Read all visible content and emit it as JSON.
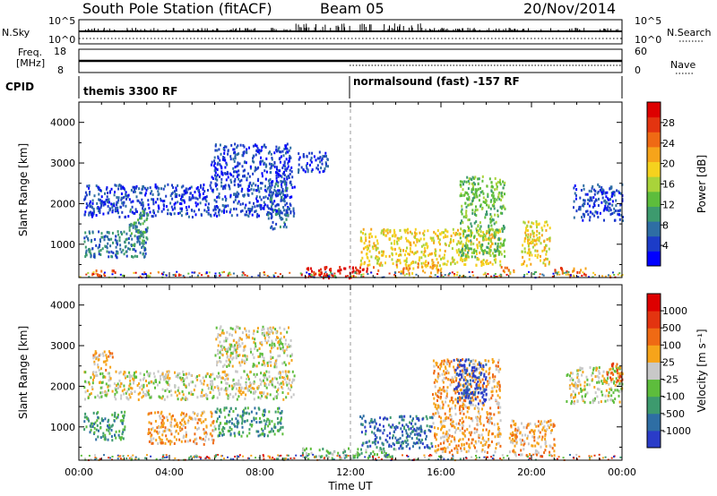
{
  "header": {
    "station": "South Pole Station (fitACF)",
    "beam": "Beam 05",
    "date": "20/Nov/2014"
  },
  "strips": {
    "nsky_label": "N.Sky",
    "nsky_ticks": [
      "10^5",
      "10^0"
    ],
    "nsearch_label": "N.Search",
    "nsearch_ticks": [
      "10^5",
      "10^0"
    ],
    "freq_label_1": "Freq.",
    "freq_label_2": "[MHz]",
    "freq_ticks": [
      "18",
      "8"
    ],
    "nave_label": "Nave",
    "nave_ticks": [
      "60",
      "0"
    ],
    "cpid_label": "CPID",
    "cpid_entries": [
      "themis 3300 RF",
      "normalsound (fast) -157 RF"
    ]
  },
  "chart_data": [
    {
      "type": "heatmap",
      "name": "power",
      "ylabel": "Slant Range [km]",
      "yticks": [
        1000,
        2000,
        3000,
        4000
      ],
      "ylim": [
        180,
        4500
      ],
      "xlabel": "Time UT",
      "xticks": [
        "00:00",
        "04:00",
        "08:00",
        "12:00",
        "16:00",
        "20:00",
        "00:00"
      ],
      "xlim_hours": [
        0,
        24
      ],
      "colorbar": {
        "label": "Power [dB]",
        "ticks": [
          "28",
          "24",
          "20",
          "16",
          "12",
          "8",
          "4"
        ],
        "colors": [
          "#0000ff",
          "#1c3cc8",
          "#2e6ea4",
          "#3d9a6e",
          "#5dbd3c",
          "#a9d33a",
          "#f5d21e",
          "#f6a41a",
          "#ef6a14",
          "#e33410",
          "#dd0000"
        ]
      },
      "regions": [
        {
          "t0": 0.2,
          "t1": 9.5,
          "r0": 1700,
          "r1": 2500,
          "level": 1
        },
        {
          "t0": 0.2,
          "t1": 3.0,
          "r0": 700,
          "r1": 1400,
          "level": 2
        },
        {
          "t0": 2.2,
          "t1": 3.0,
          "r0": 1000,
          "r1": 1900,
          "level": 3
        },
        {
          "t0": 5.8,
          "t1": 9.4,
          "r0": 2500,
          "r1": 3500,
          "level": 1
        },
        {
          "t0": 8.3,
          "t1": 9.2,
          "r0": 1400,
          "r1": 2600,
          "level": 2
        },
        {
          "t0": 0.7,
          "t1": 1.6,
          "r0": 250,
          "r1": 420,
          "level": 9
        },
        {
          "t0": 9.8,
          "t1": 12.2,
          "r0": 200,
          "r1": 470,
          "level": 10
        },
        {
          "t0": 12.2,
          "t1": 13.2,
          "r0": 300,
          "r1": 470,
          "level": 9
        },
        {
          "t0": 12.4,
          "t1": 18.6,
          "r0": 500,
          "r1": 1400,
          "level": 6
        },
        {
          "t0": 14.0,
          "t1": 16.0,
          "r0": 300,
          "r1": 600,
          "level": 7
        },
        {
          "t0": 16.8,
          "t1": 18.8,
          "r0": 700,
          "r1": 2700,
          "level": 4
        },
        {
          "t0": 19.5,
          "t1": 20.8,
          "r0": 500,
          "r1": 1600,
          "level": 6
        },
        {
          "t0": 21.8,
          "t1": 24.0,
          "r0": 1600,
          "r1": 2500,
          "level": 1
        },
        {
          "t0": 9.6,
          "t1": 11.0,
          "r0": 2800,
          "r1": 3300,
          "level": 1
        },
        {
          "t0": 18.6,
          "t1": 19.2,
          "r0": 250,
          "r1": 500,
          "level": 8
        },
        {
          "t0": 21.0,
          "t1": 22.4,
          "r0": 250,
          "r1": 450,
          "level": 8
        }
      ]
    },
    {
      "type": "heatmap",
      "name": "velocity",
      "ylabel": "Slant Range [km]",
      "yticks": [
        1000,
        2000,
        3000,
        4000
      ],
      "ylim": [
        180,
        4500
      ],
      "xlabel": "Time UT",
      "xticks": [
        "00:00",
        "04:00",
        "08:00",
        "12:00",
        "16:00",
        "20:00",
        "00:00"
      ],
      "xlim_hours": [
        0,
        24
      ],
      "colorbar": {
        "label": "Velocity [m s⁻¹]",
        "ticks": [
          "1000",
          "500",
          "100",
          "25",
          "-25",
          "-100",
          "-500",
          "-1000"
        ],
        "colors": [
          "#2a3cc8",
          "#2e6ea4",
          "#3d9a6e",
          "#5dbd3c",
          "#c8c8c8",
          "#f6a41a",
          "#ef6a14",
          "#e33410",
          "#dd0000"
        ]
      },
      "regions": [
        {
          "t0": 0.2,
          "t1": 9.5,
          "r0": 1700,
          "r1": 2400,
          "level": 4
        },
        {
          "t0": 0.2,
          "t1": 2.0,
          "r0": 700,
          "r1": 1400,
          "level": 2
        },
        {
          "t0": 0.6,
          "t1": 1.5,
          "r0": 2400,
          "r1": 2900,
          "level": 5
        },
        {
          "t0": 3.0,
          "t1": 6.0,
          "r0": 600,
          "r1": 1400,
          "level": 5
        },
        {
          "t0": 6.0,
          "t1": 9.4,
          "r0": 2500,
          "r1": 3500,
          "level": 4
        },
        {
          "t0": 6.0,
          "t1": 9.0,
          "r0": 800,
          "r1": 1500,
          "level": 2
        },
        {
          "t0": 9.8,
          "t1": 14.0,
          "r0": 250,
          "r1": 500,
          "level": 3
        },
        {
          "t0": 12.4,
          "t1": 15.6,
          "r0": 500,
          "r1": 1300,
          "level": 1
        },
        {
          "t0": 15.6,
          "t1": 18.6,
          "r0": 400,
          "r1": 2700,
          "level": 5
        },
        {
          "t0": 16.5,
          "t1": 18.0,
          "r0": 1600,
          "r1": 2700,
          "level": 0
        },
        {
          "t0": 19.0,
          "t1": 21.0,
          "r0": 300,
          "r1": 1200,
          "level": 5
        },
        {
          "t0": 21.5,
          "t1": 24.0,
          "r0": 1600,
          "r1": 2500,
          "level": 4
        },
        {
          "t0": 23.2,
          "t1": 24.0,
          "r0": 2100,
          "r1": 2600,
          "level": 6
        }
      ]
    }
  ]
}
